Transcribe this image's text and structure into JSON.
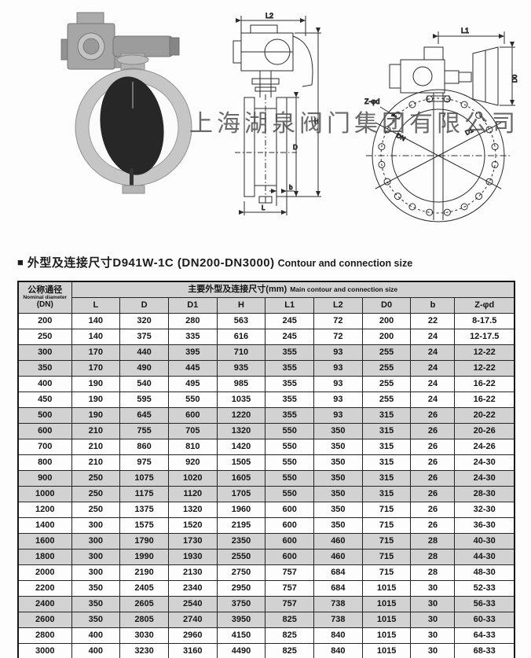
{
  "watermark": "上海湖泉阀门集团有限公司",
  "section": {
    "bullet": "■",
    "title_zh": "外型及连接尺寸D941W-1C (DN200-DN3000)",
    "title_en": "Contour and connection size"
  },
  "figures": {
    "side_view": {
      "l2": "L2",
      "h": "H",
      "d": "D",
      "l": "L",
      "b": "b"
    },
    "front_view": {
      "l1": "L1",
      "d0": "D0",
      "z_phi_d": "Z-φd",
      "dn": "DN",
      "d1": "D1"
    }
  },
  "table": {
    "corner": {
      "zh": "公称通径",
      "en": "Nominal diameter",
      "unit": "(DN)"
    },
    "group": {
      "zh": "主要外型及连接尺寸(mm)",
      "en": "Main contour and connection size"
    },
    "columns": [
      "L",
      "D",
      "D1",
      "H",
      "L1",
      "L2",
      "D0",
      "b",
      "Z-φd"
    ],
    "rows": [
      [
        "200",
        "140",
        "320",
        "280",
        "563",
        "245",
        "72",
        "200",
        "22",
        "8-17.5"
      ],
      [
        "250",
        "140",
        "375",
        "335",
        "616",
        "245",
        "72",
        "200",
        "24",
        "12-17.5"
      ],
      [
        "300",
        "170",
        "440",
        "395",
        "710",
        "355",
        "93",
        "255",
        "24",
        "12-22"
      ],
      [
        "350",
        "170",
        "490",
        "445",
        "935",
        "355",
        "93",
        "255",
        "24",
        "12-22"
      ],
      [
        "400",
        "190",
        "540",
        "495",
        "985",
        "355",
        "93",
        "255",
        "24",
        "16-22"
      ],
      [
        "450",
        "190",
        "595",
        "550",
        "1035",
        "355",
        "93",
        "255",
        "24",
        "16-22"
      ],
      [
        "500",
        "190",
        "645",
        "600",
        "1220",
        "355",
        "93",
        "315",
        "26",
        "20-22"
      ],
      [
        "600",
        "210",
        "755",
        "705",
        "1320",
        "550",
        "350",
        "315",
        "26",
        "20-26"
      ],
      [
        "700",
        "210",
        "860",
        "810",
        "1420",
        "550",
        "350",
        "315",
        "26",
        "24-26"
      ],
      [
        "800",
        "210",
        "975",
        "920",
        "1505",
        "550",
        "350",
        "315",
        "26",
        "24-30"
      ],
      [
        "900",
        "250",
        "1075",
        "1020",
        "1605",
        "550",
        "350",
        "315",
        "26",
        "24-30"
      ],
      [
        "1000",
        "250",
        "1175",
        "1120",
        "1705",
        "550",
        "350",
        "315",
        "26",
        "28-30"
      ],
      [
        "1200",
        "250",
        "1375",
        "1320",
        "1960",
        "600",
        "350",
        "715",
        "26",
        "32-30"
      ],
      [
        "1400",
        "300",
        "1575",
        "1520",
        "2195",
        "600",
        "350",
        "715",
        "26",
        "36-30"
      ],
      [
        "1600",
        "300",
        "1790",
        "1730",
        "2350",
        "600",
        "460",
        "715",
        "28",
        "40-30"
      ],
      [
        "1800",
        "300",
        "1990",
        "1930",
        "2550",
        "600",
        "460",
        "715",
        "28",
        "44-30"
      ],
      [
        "2000",
        "300",
        "2190",
        "2130",
        "2750",
        "757",
        "684",
        "715",
        "28",
        "48-30"
      ],
      [
        "2200",
        "350",
        "2405",
        "2340",
        "2950",
        "757",
        "684",
        "1015",
        "30",
        "52-33"
      ],
      [
        "2400",
        "350",
        "2605",
        "2540",
        "3750",
        "757",
        "738",
        "1015",
        "30",
        "56-33"
      ],
      [
        "2600",
        "350",
        "2805",
        "2740",
        "3950",
        "825",
        "738",
        "1015",
        "30",
        "60-33"
      ],
      [
        "2800",
        "400",
        "3030",
        "2960",
        "4150",
        "825",
        "840",
        "1015",
        "30",
        "64-33"
      ],
      [
        "3000",
        "400",
        "3230",
        "3160",
        "4490",
        "825",
        "840",
        "1015",
        "30",
        "68-33"
      ]
    ]
  },
  "colors": {
    "row_shade": "#d2d2d2",
    "line": "#2b2b2b",
    "disc": "#272727"
  }
}
